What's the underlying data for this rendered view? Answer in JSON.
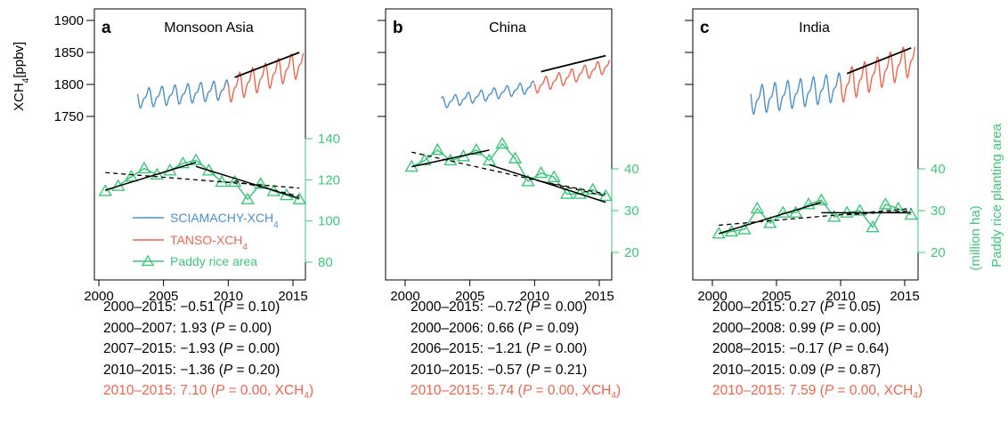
{
  "figure": {
    "left_axis_label": "XCH4[ppbv]",
    "right_axis_label_line1": "(million ha)",
    "right_axis_label_line2": "Paddy rice planting area",
    "legend": [
      {
        "label": "SCIAMACHY-XCH4",
        "color": "#4a90cd"
      },
      {
        "label": "TANSO-XCH4",
        "color": "#f0654b"
      },
      {
        "label": "Paddy rice area",
        "color": "#3dc77b"
      }
    ]
  },
  "colors": {
    "sciamachy": "#4a90cd",
    "tanso": "#f0654b",
    "paddy": "#3dc77b",
    "trend": "#000000"
  },
  "chart_data": [
    {
      "type": "line",
      "panel": "a",
      "title": "Monsoon Asia",
      "x": [
        2000,
        2001,
        2002,
        2003,
        2004,
        2005,
        2006,
        2007,
        2008,
        2009,
        2010,
        2011,
        2012,
        2013,
        2014,
        2015
      ],
      "paddy_values": [
        114.5,
        117,
        121.5,
        125.5,
        122.5,
        124.5,
        128,
        129.5,
        124.5,
        119,
        119,
        110.5,
        118,
        114.5,
        112.5,
        110.5
      ],
      "xch4_sciamachy_range": [
        2003,
        2010
      ],
      "xch4_tanso_range": [
        2010,
        2015.8
      ],
      "xch4_start": 1778,
      "xch4_growth_sciamachy": 2.0,
      "xch4_growth_tanso": 7.1,
      "xch4_amplitude_sciamachy": 22,
      "xch4_amplitude_tanso": 30,
      "xch4_trend_tanso": [
        [
          2010.5,
          1811
        ],
        [
          2015.5,
          1850
        ]
      ],
      "paddy_trends_solid": [
        [
          [
            2000.5,
            115
          ],
          [
            2007.5,
            128.5
          ]
        ],
        [
          [
            2007.5,
            126.5
          ],
          [
            2015.5,
            111
          ]
        ]
      ],
      "paddy_trends_dashed": [
        [
          [
            2000.5,
            123.5
          ],
          [
            2015.5,
            116
          ]
        ],
        [
          [
            2010.5,
            119.5
          ],
          [
            2015.5,
            112
          ]
        ]
      ],
      "left_axis": {
        "label": "XCH4[ppbv]",
        "ticks": [
          1750,
          1800,
          1850,
          1900
        ]
      },
      "right_axis": {
        "ticks": [
          80,
          100,
          120,
          140
        ]
      },
      "x_ticks": [
        2000,
        2005,
        2010,
        2015
      ],
      "stats": [
        "2000–2015: −0.51 (P = 0.10)",
        "2000–2007: 1.93 (P = 0.00)",
        "2007–2015: −1.93 (P = 0.00)",
        "2010–2015: −1.36 (P = 0.20)",
        "2010–2015: 7.10 (P = 0.00, XCH4)"
      ]
    },
    {
      "type": "line",
      "panel": "b",
      "title": "China",
      "x": [
        2000,
        2001,
        2002,
        2003,
        2004,
        2005,
        2006,
        2007,
        2008,
        2009,
        2010,
        2011,
        2012,
        2013,
        2014,
        2015
      ],
      "paddy_values": [
        40.5,
        42,
        44.5,
        42,
        43,
        44.5,
        42,
        46,
        42.5,
        37,
        39,
        38,
        34,
        34,
        35,
        33.5
      ],
      "xch4_sciamachy_range": [
        2002.8,
        2010
      ],
      "xch4_tanso_range": [
        2010,
        2015.8
      ],
      "xch4_start": 1772,
      "xch4_growth_sciamachy": 3.5,
      "xch4_growth_tanso": 5.74,
      "xch4_amplitude_sciamachy": 13,
      "xch4_amplitude_tanso": 16,
      "xch4_trend_tanso": [
        [
          2010.5,
          1820
        ],
        [
          2015.5,
          1845
        ]
      ],
      "paddy_trends_solid": [
        [
          [
            2000.5,
            40.5
          ],
          [
            2006.5,
            44.5
          ]
        ],
        [
          [
            2006.5,
            41
          ],
          [
            2015.5,
            32
          ]
        ]
      ],
      "paddy_trends_dashed": [
        [
          [
            2000.5,
            44
          ],
          [
            2015.5,
            33.5
          ]
        ],
        [
          [
            2010.5,
            37
          ],
          [
            2015.5,
            34
          ]
        ]
      ],
      "right_axis": {
        "ticks": [
          20,
          30,
          40
        ]
      },
      "x_ticks": [
        2000,
        2005,
        2010,
        2015
      ],
      "stats": [
        "2000–2015: −0.72 (P = 0.00)",
        "2000–2006: 0.66 (P = 0.09)",
        "2006–2015: −1.21 (P = 0.00)",
        "2010–2015: −0.57 (P = 0.21)",
        "2010–2015: 5.74 (P = 0.00, XCH4)"
      ]
    },
    {
      "type": "line",
      "panel": "c",
      "title": "India",
      "x": [
        2000,
        2001,
        2002,
        2003,
        2004,
        2005,
        2006,
        2007,
        2008,
        2009,
        2010,
        2011,
        2012,
        2013,
        2014,
        2015
      ],
      "paddy_values": [
        24.5,
        25,
        25.5,
        30.5,
        27,
        29.5,
        29.5,
        31.5,
        32.5,
        28.5,
        29.5,
        30,
        26,
        31.5,
        30.5,
        29
      ],
      "xch4_sciamachy_range": [
        2003,
        2010
      ],
      "xch4_tanso_range": [
        2010,
        2015.8
      ],
      "xch4_start": 1775,
      "xch4_growth_sciamachy": 3.0,
      "xch4_growth_tanso": 7.59,
      "xch4_amplitude_sciamachy": 32,
      "xch4_amplitude_tanso": 36,
      "xch4_trend_tanso": [
        [
          2010.5,
          1817
        ],
        [
          2015.5,
          1857
        ]
      ],
      "paddy_trends_solid": [
        [
          [
            2000.5,
            24.5
          ],
          [
            2008.5,
            32
          ]
        ],
        [
          [
            2008.5,
            29.5
          ],
          [
            2015.5,
            29.5
          ]
        ]
      ],
      "paddy_trends_dashed": [
        [
          [
            2000.5,
            26.5
          ],
          [
            2015.5,
            30.5
          ]
        ],
        [
          [
            2010.5,
            29
          ],
          [
            2015.5,
            30
          ]
        ]
      ],
      "right_axis": {
        "label": "Paddy rice planting area (million ha)",
        "ticks": [
          20,
          30,
          40
        ]
      },
      "x_ticks": [
        2000,
        2005,
        2010,
        2015
      ],
      "stats": [
        "2000–2015: 0.27 (P = 0.05)",
        "2000–2008: 0.99 (P = 0.00)",
        "2008–2015: −0.17 (P = 0.64)",
        "2010–2015: 0.09 (P = 0.87)",
        "2010–2015: 7.59 (P = 0.00, XCH4)"
      ]
    }
  ]
}
